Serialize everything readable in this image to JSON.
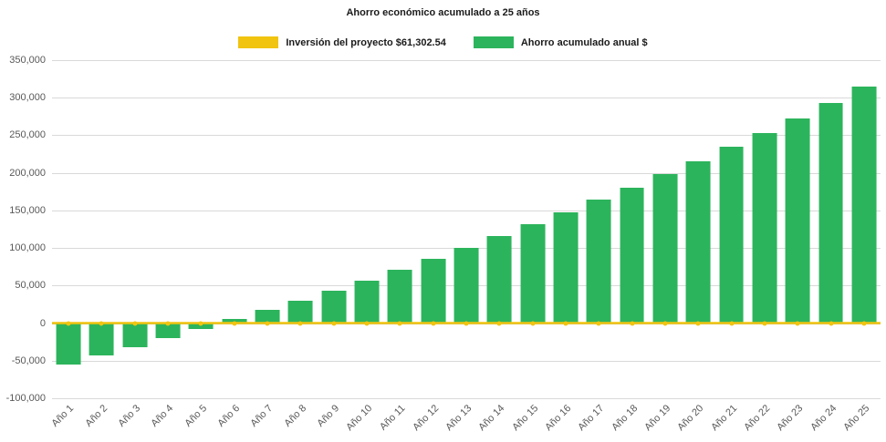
{
  "title": "Ahorro económico acumulado a 25 años",
  "legend": [
    {
      "label": "Inversión del proyecto $61,302.54",
      "color": "#F1C40F"
    },
    {
      "label": "Ahorro acumulado anual $",
      "color": "#2CB45C"
    }
  ],
  "chart_data": {
    "type": "bar",
    "title": "Ahorro económico acumulado a 25 años",
    "categories": [
      "Año 1",
      "Año 2",
      "Año 3",
      "Año 4",
      "Año 5",
      "Año 6",
      "Año 7",
      "Año 8",
      "Año 9",
      "Año 10",
      "Año 11",
      "Año 12",
      "Año 13",
      "Año 14",
      "Año 15",
      "Año 16",
      "Año 17",
      "Año 18",
      "Año 19",
      "Año 20",
      "Año 21",
      "Año 22",
      "Año 23",
      "Año 24",
      "Año 25"
    ],
    "series": [
      {
        "name": "Ahorro acumulado anual $",
        "type": "bar",
        "color": "#2CB45C",
        "values": [
          -55000,
          -43000,
          -31500,
          -20000,
          -8000,
          5500,
          17500,
          30000,
          43000,
          56500,
          71000,
          85500,
          100000,
          116000,
          131500,
          147500,
          164500,
          180500,
          198000,
          215500,
          234500,
          253500,
          272500,
          293000,
          314500
        ]
      },
      {
        "name": "Inversión del proyecto $61,302.54",
        "type": "line",
        "color": "#F1C40F",
        "values": [
          0,
          0,
          0,
          0,
          0,
          0,
          0,
          0,
          0,
          0,
          0,
          0,
          0,
          0,
          0,
          0,
          0,
          0,
          0,
          0,
          0,
          0,
          0,
          0,
          0
        ]
      }
    ],
    "ylim": [
      -100000,
      350000
    ],
    "ytick_step": 50000,
    "grid": true,
    "legend_position": "top",
    "xlabel": "",
    "ylabel": ""
  }
}
